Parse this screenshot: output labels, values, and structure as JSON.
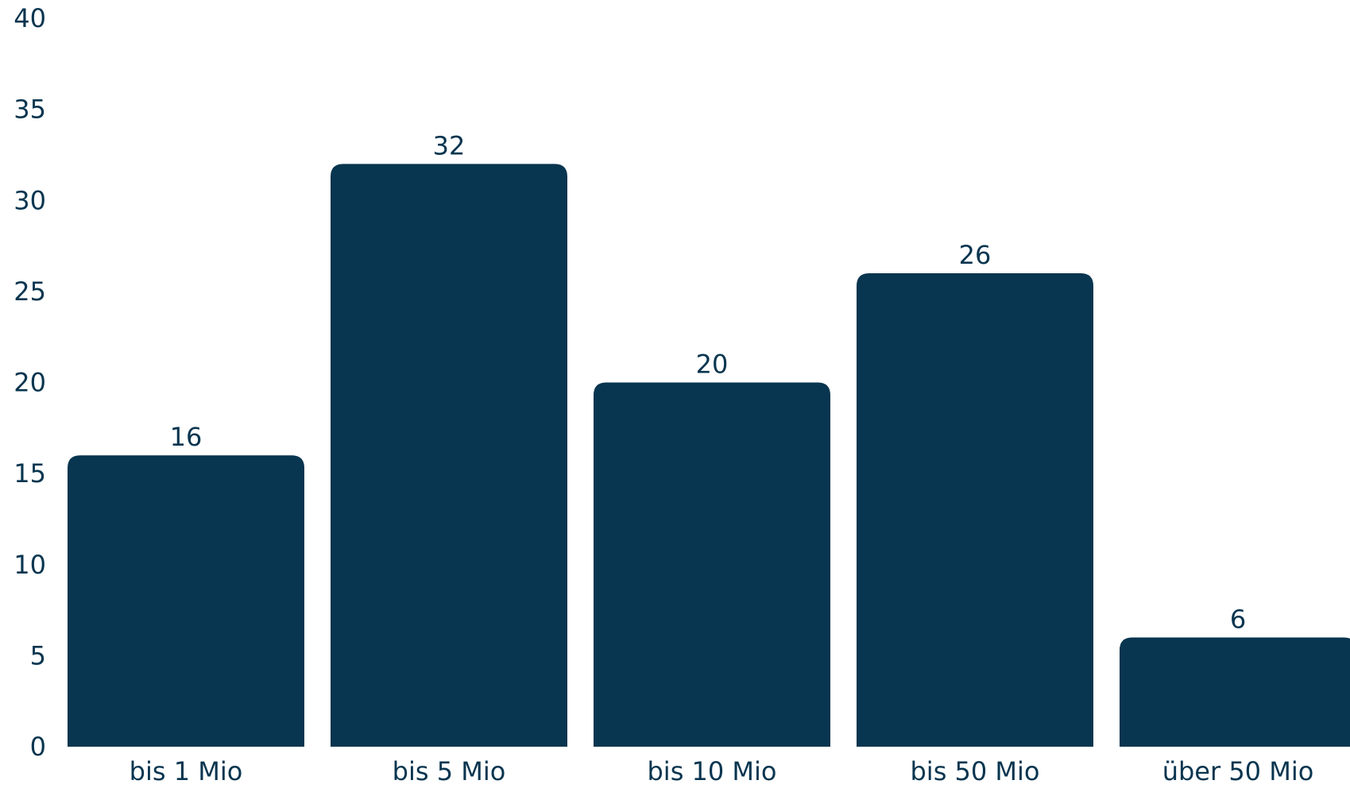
{
  "chart_data": {
    "type": "bar",
    "categories": [
      "bis 1 Mio",
      "bis 5 Mio",
      "bis 10 Mio",
      "bis 50 Mio",
      "über 50 Mio"
    ],
    "values": [
      16,
      32,
      20,
      26,
      6
    ],
    "data_labels": [
      "16",
      "32",
      "20",
      "26",
      "6"
    ],
    "ylim": [
      0,
      40
    ],
    "yticks": [
      "0",
      "5",
      "10",
      "15",
      "20",
      "25",
      "30",
      "35",
      "40"
    ],
    "title": "",
    "xlabel": "",
    "ylabel": "",
    "grid": false,
    "legend": "none",
    "colors": {
      "bar": "#08354f",
      "text": "#08354f"
    }
  }
}
